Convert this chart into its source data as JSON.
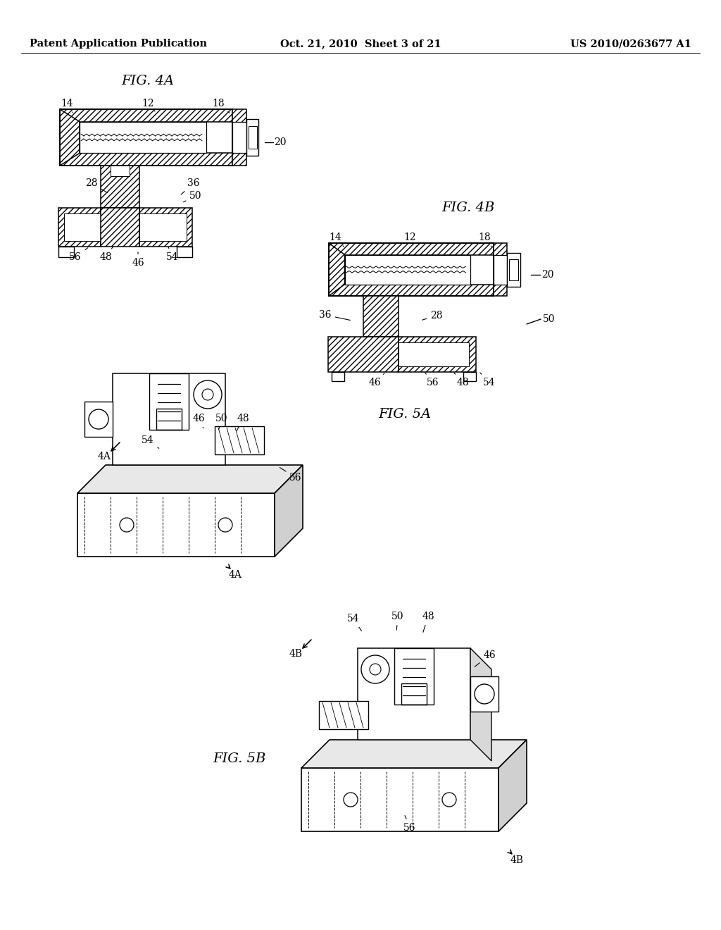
{
  "background_color": "#ffffff",
  "header_left": "Patent Application Publication",
  "header_center": "Oct. 21, 2010  Sheet 3 of 21",
  "header_right": "US 2010/0263677 A1",
  "header_fontsize": 10.5,
  "fig_label_fontsize": 14,
  "part_label_fontsize": 10,
  "line_color": "#000000"
}
